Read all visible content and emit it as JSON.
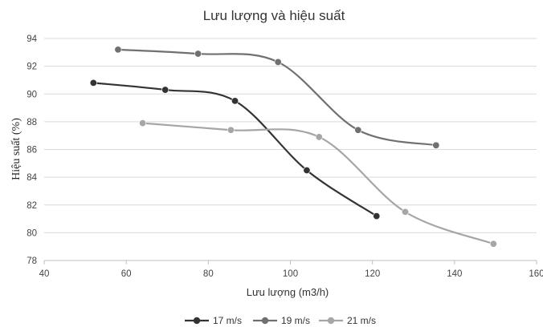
{
  "chart_data": {
    "type": "line",
    "title": "Lưu lượng và hiệu suất",
    "xlabel": "Lưu lượng (m3/h)",
    "ylabel": "Hiệu suất (%)",
    "xlim": [
      40,
      160
    ],
    "ylim": [
      78,
      94
    ],
    "xticks": [
      40,
      60,
      80,
      100,
      120,
      140,
      160
    ],
    "yticks": [
      78,
      80,
      82,
      84,
      86,
      88,
      90,
      92,
      94
    ],
    "grid": "horizontal",
    "legend": "bottom",
    "series": [
      {
        "name": "17 m/s",
        "color": "#333333",
        "points": [
          [
            52,
            90.8
          ],
          [
            69.5,
            90.3
          ],
          [
            86.5,
            89.5
          ],
          [
            104,
            84.5
          ],
          [
            121,
            81.2
          ]
        ]
      },
      {
        "name": "19 m/s",
        "color": "#707070",
        "points": [
          [
            58,
            93.2
          ],
          [
            77.5,
            92.9
          ],
          [
            97,
            92.3
          ],
          [
            116.5,
            87.4
          ],
          [
            135.5,
            86.3
          ]
        ]
      },
      {
        "name": "21 m/s",
        "color": "#a6a6a6",
        "points": [
          [
            64,
            87.9
          ],
          [
            85.5,
            87.4
          ],
          [
            107,
            86.9
          ],
          [
            128,
            81.5
          ],
          [
            149.5,
            79.2
          ]
        ]
      }
    ]
  }
}
